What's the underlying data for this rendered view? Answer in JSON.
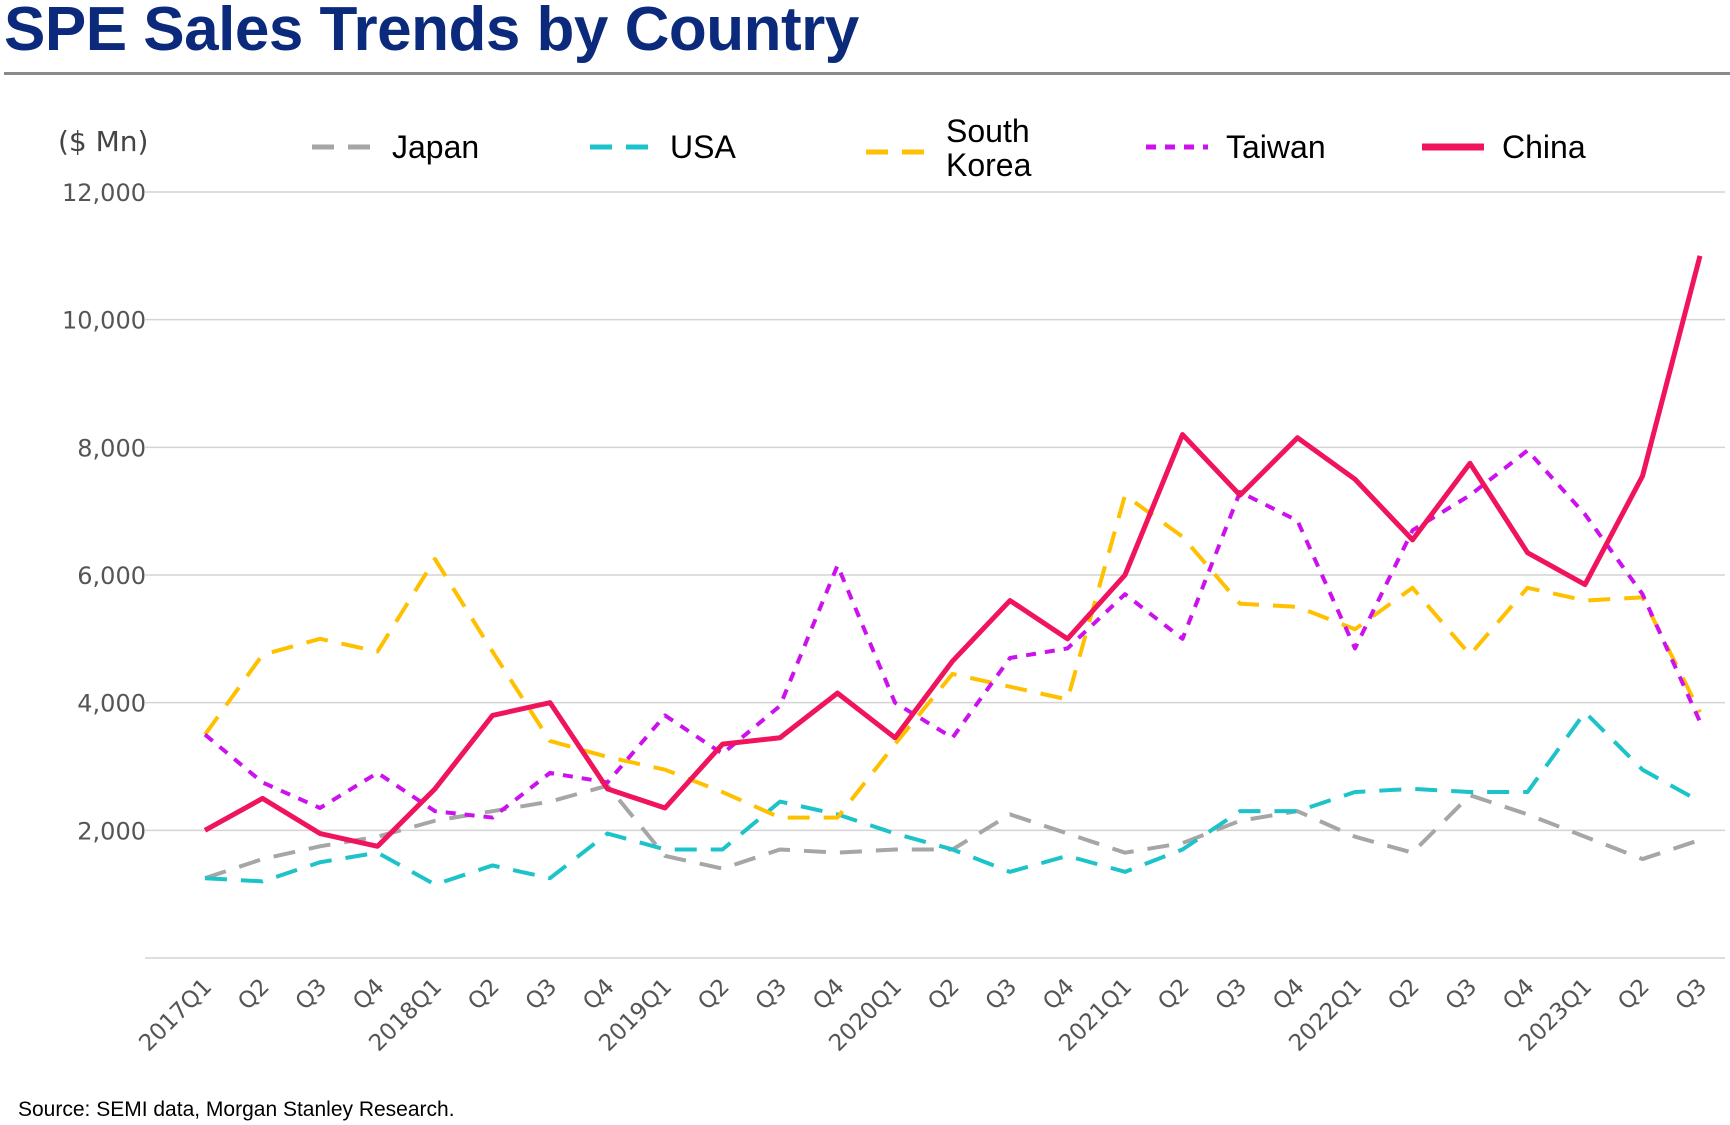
{
  "title": "SPE Sales Trends by Country",
  "unit_label": "($ Mn)",
  "source": "Source: SEMI data, Morgan Stanley Research.",
  "chart_data": {
    "type": "line",
    "title": "SPE Sales Trends by Country",
    "ylabel": "($ Mn)",
    "xlabel": "",
    "ylim": [
      0,
      12000
    ],
    "y_ticks": [
      "12,000",
      "10,000",
      "8,000",
      "6,000",
      "4,000",
      "2,000"
    ],
    "y_tick_values": [
      12000,
      10000,
      8000,
      6000,
      4000,
      2000
    ],
    "grid": true,
    "legend_position": "top",
    "categories": [
      "2017Q1",
      "Q2",
      "Q3",
      "Q4",
      "2018Q1",
      "Q2",
      "Q3",
      "Q4",
      "2019Q1",
      "Q2",
      "Q3",
      "Q4",
      "2020Q1",
      "Q2",
      "Q3",
      "Q4",
      "2021Q1",
      "Q2",
      "Q3",
      "Q4",
      "2022Q1",
      "Q2",
      "Q3",
      "Q4",
      "2023Q1",
      "Q2",
      "Q3"
    ],
    "series": [
      {
        "name": "Japan",
        "color": "#a6a6a6",
        "dash": "dashed",
        "values": [
          1250,
          1550,
          1750,
          1900,
          2150,
          2300,
          2450,
          2700,
          1600,
          1400,
          1700,
          1650,
          1700,
          1700,
          2250,
          1950,
          1650,
          1800,
          2150,
          2300,
          1900,
          1650,
          2550,
          2250,
          1900,
          1550,
          1850
        ]
      },
      {
        "name": "USA",
        "color": "#1cc3c8",
        "dash": "dashed",
        "values": [
          1250,
          1200,
          1500,
          1650,
          1150,
          1450,
          1250,
          1950,
          1700,
          1700,
          2450,
          2250,
          1950,
          1700,
          1350,
          1600,
          1350,
          1700,
          2300,
          2300,
          2600,
          2650,
          2600,
          2600,
          3850,
          2950,
          2450
        ]
      },
      {
        "name": "South Korea",
        "label_lines": [
          "South",
          "Korea"
        ],
        "color": "#ffc000",
        "dash": "dashed",
        "values": [
          3500,
          4750,
          5000,
          4800,
          6250,
          4800,
          3400,
          3150,
          2950,
          2600,
          2200,
          2200,
          3350,
          4450,
          4250,
          4050,
          7250,
          6600,
          5550,
          5500,
          5150,
          5800,
          4750,
          5800,
          5600,
          5650,
          3850
        ]
      },
      {
        "name": "Taiwan",
        "color": "#cc11ee",
        "dash": "dotted",
        "values": [
          3500,
          2750,
          2350,
          2900,
          2300,
          2200,
          2900,
          2750,
          3800,
          3200,
          3950,
          6150,
          4000,
          3450,
          4700,
          4850,
          5700,
          5000,
          7300,
          6850,
          4850,
          6700,
          7250,
          7950,
          6950,
          5700,
          3700
        ]
      },
      {
        "name": "China",
        "color": "#f0145c",
        "dash": "solid",
        "values": [
          2000,
          2500,
          1950,
          1750,
          2650,
          3800,
          4000,
          2650,
          2350,
          3350,
          3450,
          4150,
          3450,
          4650,
          5600,
          5000,
          6000,
          8200,
          7250,
          8150,
          7500,
          6550,
          7750,
          6350,
          5850,
          7550,
          11000
        ]
      }
    ]
  }
}
